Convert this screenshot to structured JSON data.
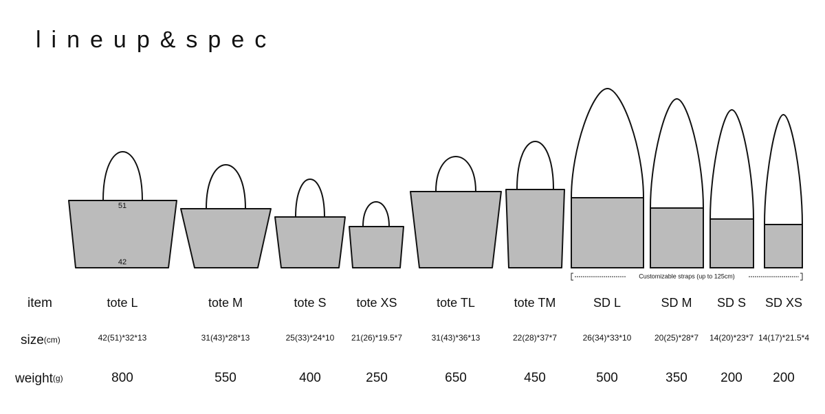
{
  "title": "lineup&spec",
  "labels": {
    "item": "item",
    "size": "size",
    "size_unit": "(cm)",
    "weight": "weight",
    "weight_unit": "(g)"
  },
  "dimension_marks": {
    "top": "51",
    "bottom": "42"
  },
  "strap_note": "Customizable straps (up to 125cm)",
  "items": [
    {
      "name": "tote L",
      "size": "42(51)*32*13",
      "weight": 800
    },
    {
      "name": "tote M",
      "size": "31(43)*28*13",
      "weight": 550
    },
    {
      "name": "tote S",
      "size": "25(33)*24*10",
      "weight": 400
    },
    {
      "name": "tote XS",
      "size": "21(26)*19.5*7",
      "weight": 250
    },
    {
      "name": "tote TL",
      "size": "31(43)*36*13",
      "weight": 650
    },
    {
      "name": "tote TM",
      "size": "22(28)*37*7",
      "weight": 450
    },
    {
      "name": "SD L",
      "size": "26(34)*33*10",
      "weight": 500
    },
    {
      "name": "SD M",
      "size": "20(25)*28*7",
      "weight": 350
    },
    {
      "name": "SD S",
      "size": "14(20)*23*7",
      "weight": 200
    },
    {
      "name": "SD XS",
      "size": "14(17)*21.5*4",
      "weight": 200
    }
  ]
}
